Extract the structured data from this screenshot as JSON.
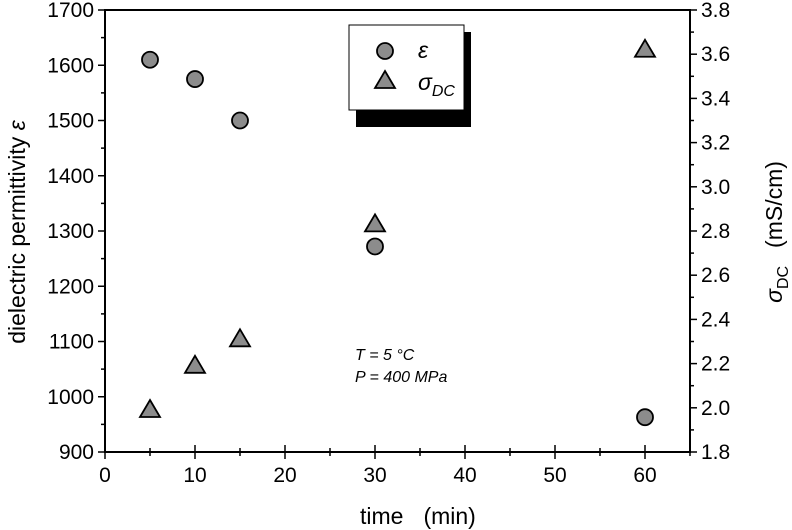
{
  "chart_data": {
    "type": "scatter",
    "title": "",
    "xlabel": "time    (min)",
    "ylabel_left": "dielectric permittivity ε",
    "ylabel_right": "σDC    (mS/cm)",
    "xlim": [
      0,
      65
    ],
    "ylim_left": [
      900,
      1700
    ],
    "ylim_right": [
      1.8,
      3.8
    ],
    "x_ticks": [
      0,
      10,
      20,
      30,
      40,
      50,
      60
    ],
    "y_ticks_left": [
      900,
      1000,
      1100,
      1200,
      1300,
      1400,
      1500,
      1600,
      1700
    ],
    "y_ticks_right": [
      "1.8",
      "2.0",
      "2.2",
      "2.4",
      "2.6",
      "2.8",
      "3.0",
      "3.2",
      "3.4",
      "3.6",
      "3.8"
    ],
    "grid": false,
    "legend_position": "top-center",
    "series": [
      {
        "name": "ε",
        "axis": "left",
        "marker": "circle",
        "color": "#8c8c8c",
        "x": [
          5,
          10,
          15,
          30,
          60
        ],
        "values": [
          1610,
          1575,
          1500,
          1272,
          963
        ]
      },
      {
        "name": "σDC",
        "axis": "right",
        "marker": "triangle",
        "color": "#8c8c8c",
        "x": [
          5,
          10,
          15,
          30,
          60
        ],
        "values": [
          1.99,
          2.19,
          2.31,
          2.83,
          3.62
        ]
      }
    ],
    "annotations": [
      "T = 5 °C",
      "P = 400 MPa"
    ]
  },
  "labels": {
    "xlabel_time": "time",
    "xlabel_unit": "(min)",
    "ylabel_left_text": "dielectric permittivity ",
    "ylabel_left_symbol": "ε",
    "ylabel_right_symbol": "σ",
    "ylabel_right_sub": "DC",
    "ylabel_right_unit": "(mS/cm)",
    "legend_eps": "ε",
    "legend_sigma": "σ",
    "legend_sigma_sub": "DC",
    "annot_T": "T = 5 °C",
    "annot_P": "P = 400 MPa"
  }
}
